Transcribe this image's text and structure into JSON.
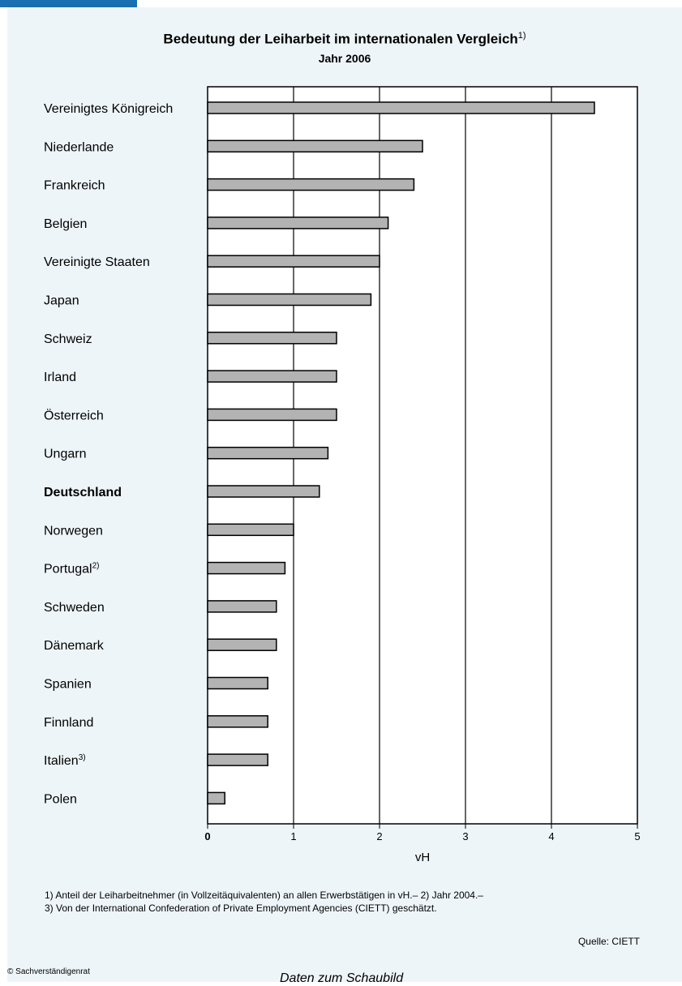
{
  "header": {
    "title": "Bedeutung der Leiharbeit im internationalen Vergleich",
    "title_sup": "1)",
    "subtitle": "Jahr 2006"
  },
  "chart_data": {
    "type": "bar",
    "orientation": "horizontal",
    "title": "Bedeutung der Leiharbeit im internationalen Vergleich",
    "subtitle": "Jahr 2006",
    "xlabel": "vH",
    "xlim": [
      0,
      5
    ],
    "xticks": [
      "0",
      "1",
      "2",
      "3",
      "4",
      "5"
    ],
    "grid": "vertical",
    "bar_color": "#b3b3b3",
    "categories": [
      {
        "label": "Vereinigtes Königreich",
        "sup": "",
        "bold": false,
        "value": 4.5
      },
      {
        "label": "Niederlande",
        "sup": "",
        "bold": false,
        "value": 2.5
      },
      {
        "label": "Frankreich",
        "sup": "",
        "bold": false,
        "value": 2.4
      },
      {
        "label": "Belgien",
        "sup": "",
        "bold": false,
        "value": 2.1
      },
      {
        "label": "Vereinigte Staaten",
        "sup": "",
        "bold": false,
        "value": 2.0
      },
      {
        "label": "Japan",
        "sup": "",
        "bold": false,
        "value": 1.9
      },
      {
        "label": "Schweiz",
        "sup": "",
        "bold": false,
        "value": 1.5
      },
      {
        "label": "Irland",
        "sup": "",
        "bold": false,
        "value": 1.5
      },
      {
        "label": "Österreich",
        "sup": "",
        "bold": false,
        "value": 1.5
      },
      {
        "label": "Ungarn",
        "sup": "",
        "bold": false,
        "value": 1.4
      },
      {
        "label": "Deutschland",
        "sup": "",
        "bold": true,
        "value": 1.3
      },
      {
        "label": "Norwegen",
        "sup": "",
        "bold": false,
        "value": 1.0
      },
      {
        "label": "Portugal",
        "sup": "2)",
        "bold": false,
        "value": 0.9
      },
      {
        "label": "Schweden",
        "sup": "",
        "bold": false,
        "value": 0.8
      },
      {
        "label": "Dänemark",
        "sup": "",
        "bold": false,
        "value": 0.8
      },
      {
        "label": "Spanien",
        "sup": "",
        "bold": false,
        "value": 0.7
      },
      {
        "label": "Finnland",
        "sup": "",
        "bold": false,
        "value": 0.7
      },
      {
        "label": "Italien",
        "sup": "3)",
        "bold": false,
        "value": 0.7
      },
      {
        "label": "Polen",
        "sup": "",
        "bold": false,
        "value": 0.2
      }
    ]
  },
  "footnotes": {
    "line1": "1) Anteil der Leiharbeitnehmer (in Vollzeitäquivalenten) an allen Erwerbstätigen in vH.– 2) Jahr 2004.–",
    "line2": "3) Von der International Confederation of Private Employment Agencies (CIETT) geschätzt."
  },
  "source": "Quelle: CIETT",
  "copyright": "© Sachverständigenrat",
  "data_link": "Daten zum Schaubild",
  "colors": {
    "accent": "#1a6fb3",
    "panel": "#eef5f8",
    "bar": "#b3b3b3"
  }
}
